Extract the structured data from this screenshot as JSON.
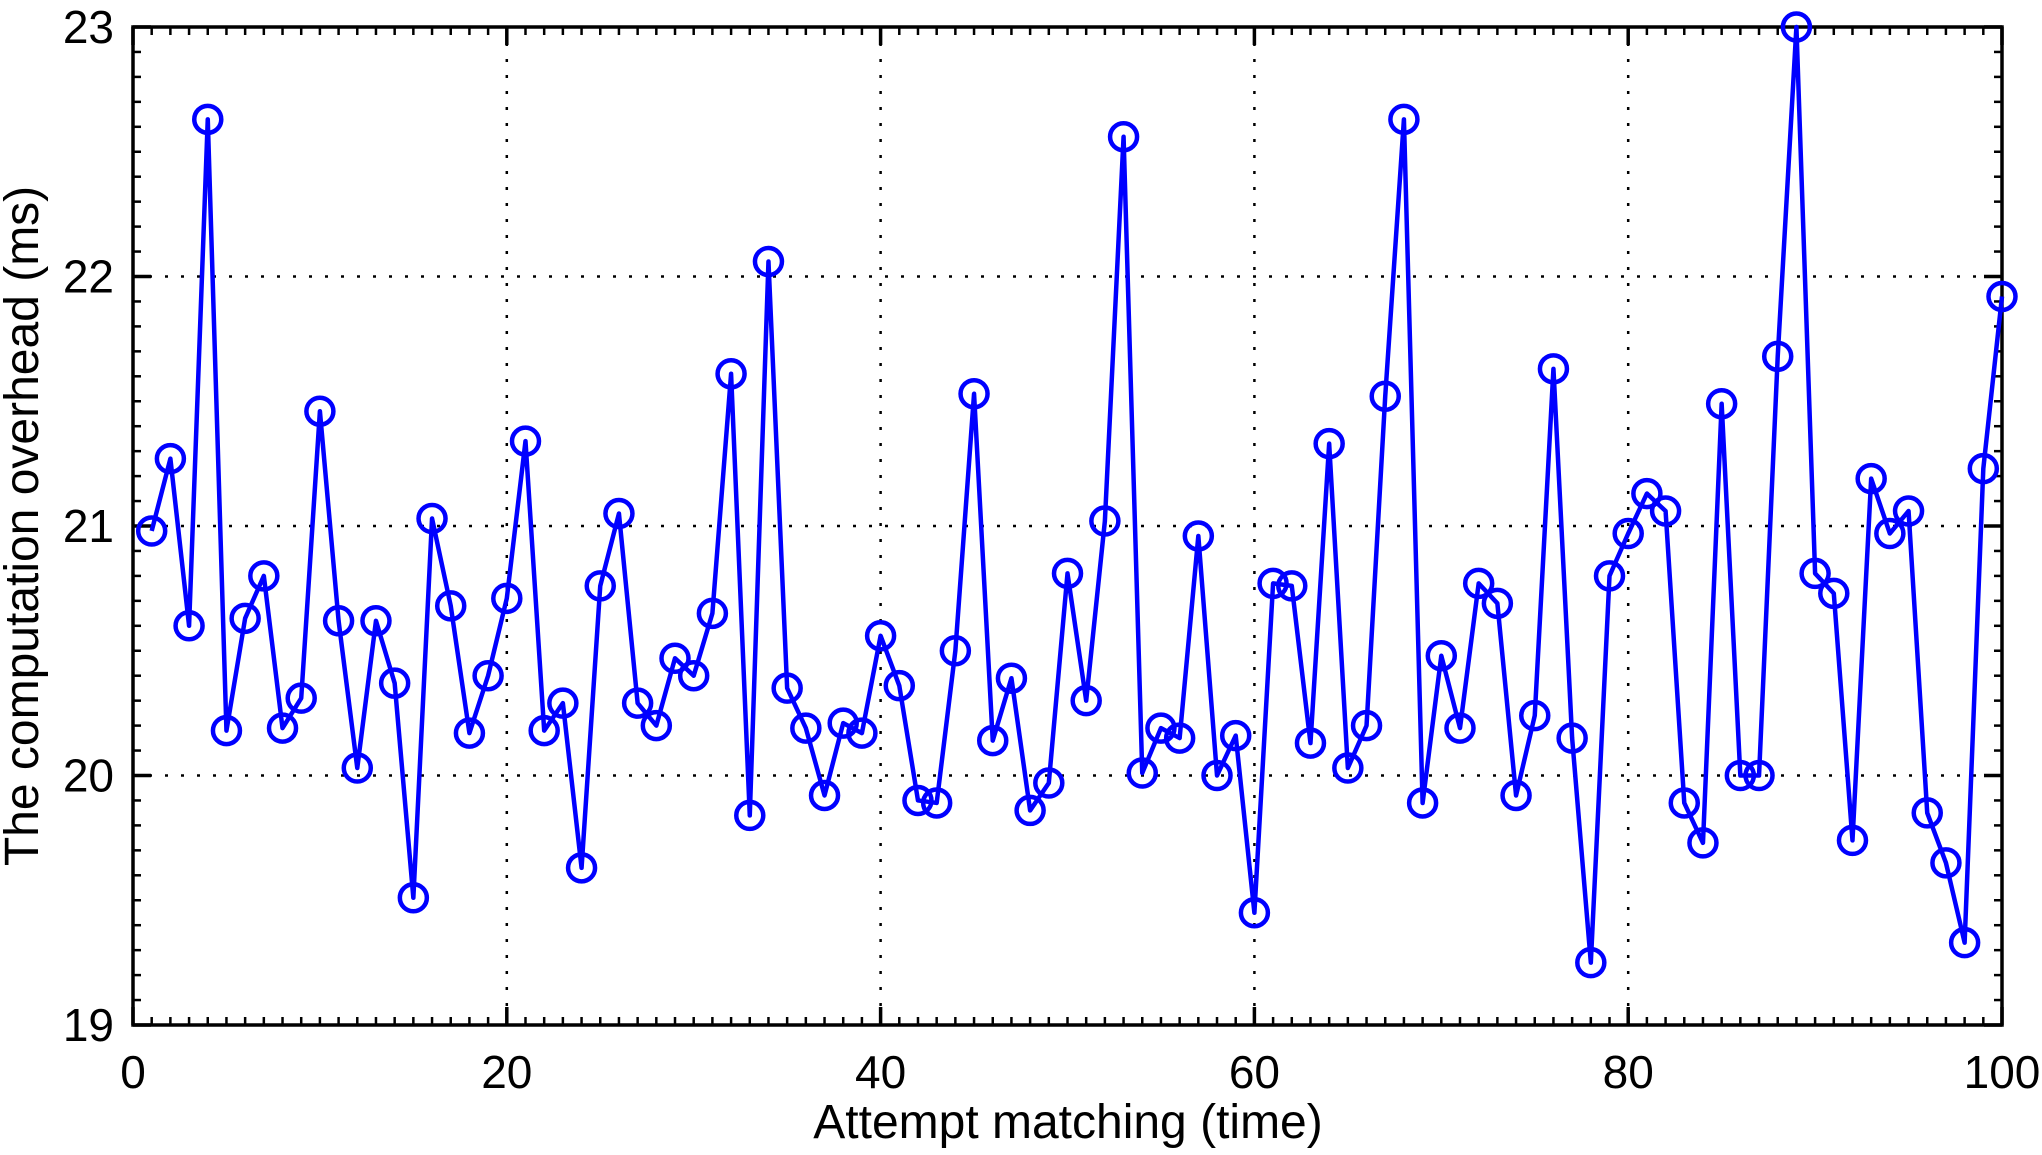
{
  "figure": {
    "background": "#ffffff",
    "line_color": "#0000ff",
    "axis_color": "#000000",
    "grid_color": "#000000",
    "marker_fill": "none"
  },
  "chart_data": {
    "type": "line",
    "title": "",
    "xlabel": "Attempt matching (time)",
    "ylabel": "The computation overhead  (ms)",
    "series_name": "computation-overhead",
    "marker": "open-circle",
    "grid": "dotted",
    "legend": "none",
    "xlim": [
      0,
      100
    ],
    "ylim": [
      19,
      23
    ],
    "x_ticks": [
      0,
      20,
      40,
      60,
      80,
      100
    ],
    "y_ticks": [
      19,
      20,
      21,
      22,
      23
    ],
    "x_minor_step": 1,
    "y_minor_step": 0.1,
    "x": [
      1,
      2,
      3,
      4,
      5,
      6,
      7,
      8,
      9,
      10,
      11,
      12,
      13,
      14,
      15,
      16,
      17,
      18,
      19,
      20,
      21,
      22,
      23,
      24,
      25,
      26,
      27,
      28,
      29,
      30,
      31,
      32,
      33,
      34,
      35,
      36,
      37,
      38,
      39,
      40,
      41,
      42,
      43,
      44,
      45,
      46,
      47,
      48,
      49,
      50,
      51,
      52,
      53,
      54,
      55,
      56,
      57,
      58,
      59,
      60,
      61,
      62,
      63,
      64,
      65,
      66,
      67,
      68,
      69,
      70,
      71,
      72,
      73,
      74,
      75,
      76,
      77,
      78,
      79,
      80,
      81,
      82,
      83,
      84,
      85,
      86,
      87,
      88,
      89,
      90,
      91,
      92,
      93,
      94,
      95,
      96,
      97,
      98,
      99,
      100
    ],
    "y": [
      20.98,
      21.27,
      20.6,
      22.63,
      20.18,
      20.63,
      20.8,
      20.19,
      20.31,
      21.46,
      20.62,
      20.03,
      20.62,
      20.37,
      19.51,
      21.03,
      20.68,
      20.17,
      20.4,
      20.71,
      21.34,
      20.18,
      20.29,
      19.63,
      20.76,
      21.05,
      20.29,
      20.2,
      20.47,
      20.4,
      20.65,
      21.61,
      19.84,
      22.06,
      20.35,
      20.19,
      19.92,
      20.21,
      20.17,
      20.56,
      20.36,
      19.9,
      19.89,
      20.5,
      21.53,
      20.14,
      20.39,
      19.86,
      19.97,
      20.81,
      20.3,
      21.02,
      22.56,
      20.01,
      20.19,
      20.15,
      20.96,
      20.0,
      20.16,
      19.45,
      20.77,
      20.76,
      20.13,
      21.33,
      20.03,
      20.2,
      21.52,
      22.63,
      19.89,
      20.48,
      20.19,
      20.77,
      20.69,
      19.92,
      20.24,
      21.63,
      20.15,
      19.25,
      20.8,
      20.97,
      21.13,
      21.06,
      19.89,
      19.73,
      21.49,
      20.0,
      20.0,
      21.68,
      23.0,
      20.81,
      20.73,
      19.74,
      21.19,
      20.97,
      21.06,
      19.85,
      19.65,
      19.33,
      21.23,
      21.92
    ]
  }
}
